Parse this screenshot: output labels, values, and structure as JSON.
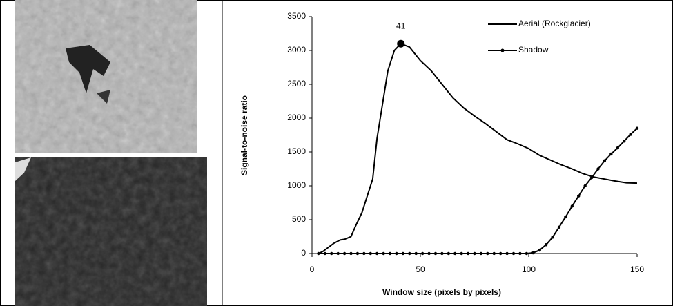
{
  "chart_data": {
    "type": "line",
    "x_label": "Window size (pixels by pixels)",
    "y_label": "Signal-to-noise ratio",
    "xlim": [
      0,
      150
    ],
    "xticks": [
      0,
      50,
      100,
      150
    ],
    "ylim": [
      0,
      3500
    ],
    "yticks": [
      0,
      500,
      1000,
      1500,
      2000,
      2500,
      3000,
      3500
    ],
    "legend": "top-right",
    "series": [
      {
        "name": "Aerial (Rockglacier)",
        "color": "#000000",
        "markers": false,
        "x": [
          3,
          5,
          10,
          13,
          15,
          18,
          20,
          23,
          25,
          28,
          30,
          33,
          35,
          38,
          41,
          45,
          50,
          55,
          60,
          65,
          70,
          75,
          80,
          85,
          90,
          95,
          100,
          105,
          110,
          115,
          120,
          125,
          130,
          135,
          140,
          145,
          150
        ],
        "values": [
          0,
          30,
          150,
          200,
          210,
          250,
          400,
          600,
          800,
          1100,
          1700,
          2300,
          2700,
          3000,
          3100,
          3050,
          2850,
          2700,
          2500,
          2300,
          2150,
          2030,
          1920,
          1800,
          1680,
          1620,
          1550,
          1450,
          1380,
          1310,
          1250,
          1180,
          1130,
          1100,
          1070,
          1045,
          1040
        ]
      },
      {
        "name": "Shadow",
        "color": "#000000",
        "markers": true,
        "x": [
          3,
          6,
          9,
          12,
          15,
          18,
          21,
          24,
          27,
          30,
          33,
          36,
          39,
          42,
          45,
          48,
          51,
          54,
          57,
          60,
          63,
          66,
          69,
          72,
          75,
          78,
          81,
          84,
          87,
          90,
          93,
          96,
          99,
          102,
          105,
          108,
          111,
          114,
          117,
          120,
          123,
          126,
          129,
          132,
          135,
          138,
          141,
          144,
          147,
          150
        ],
        "values": [
          0,
          0,
          0,
          0,
          0,
          0,
          0,
          0,
          0,
          0,
          0,
          0,
          0,
          0,
          0,
          0,
          0,
          0,
          0,
          0,
          0,
          0,
          0,
          0,
          0,
          0,
          0,
          0,
          0,
          0,
          0,
          0,
          0,
          10,
          50,
          130,
          240,
          390,
          540,
          700,
          850,
          1000,
          1120,
          1250,
          1370,
          1470,
          1560,
          1660,
          1760,
          1850
        ]
      }
    ],
    "annotations": [
      {
        "label": "41",
        "x": 41,
        "y": 3100
      }
    ]
  }
}
